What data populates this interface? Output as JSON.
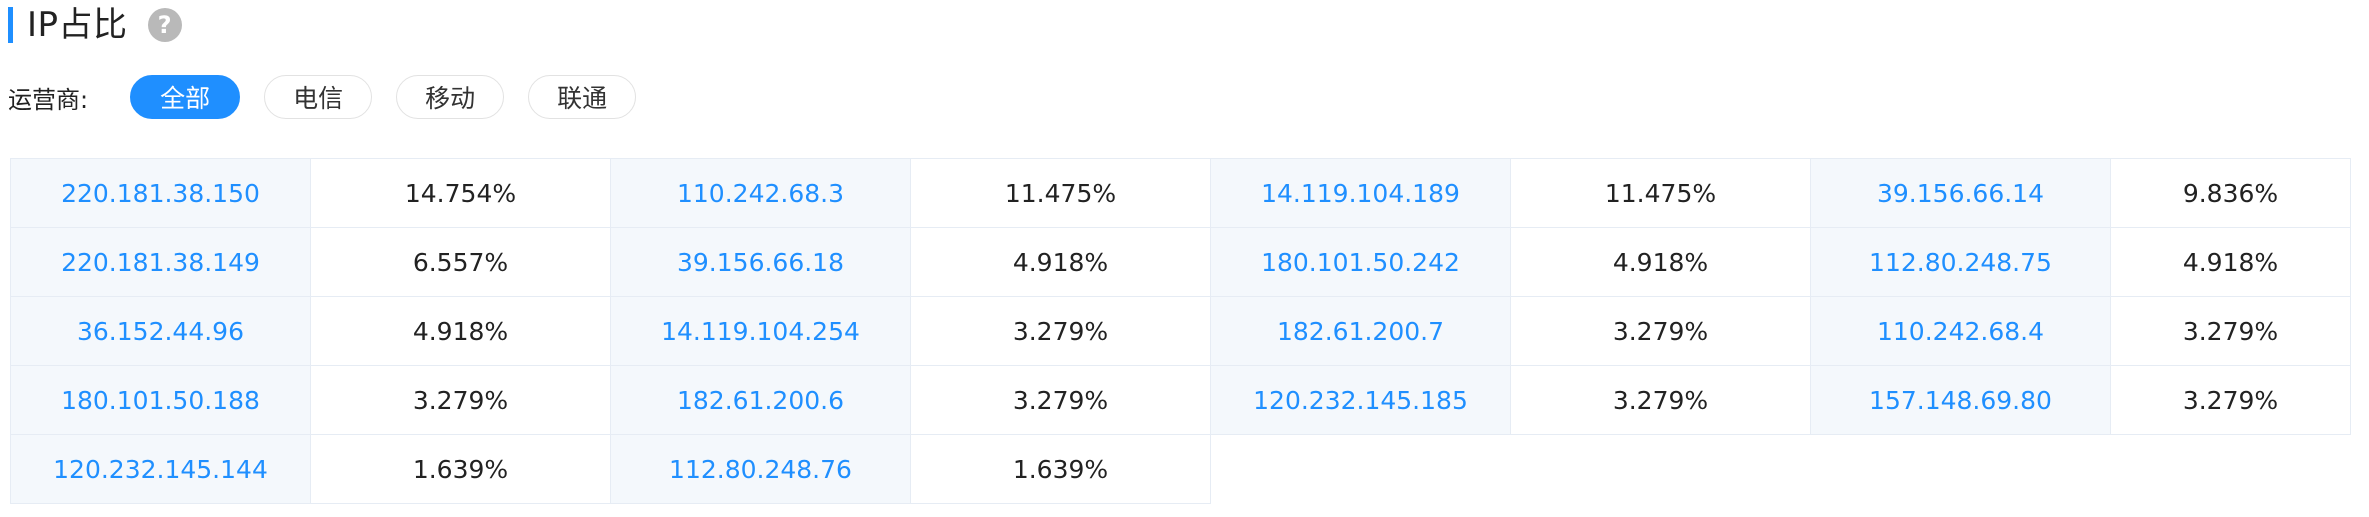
{
  "header": {
    "title": "IP占比",
    "help_icon": "question-circle-icon",
    "accent_color": "#1f8fff"
  },
  "filter": {
    "label": "运营商:",
    "options": [
      {
        "label": "全部",
        "active": true
      },
      {
        "label": "电信",
        "active": false
      },
      {
        "label": "移动",
        "active": false
      },
      {
        "label": "联通",
        "active": false
      }
    ]
  },
  "table": {
    "rows": [
      [
        {
          "ip": "220.181.38.150",
          "pct": "14.754%"
        },
        {
          "ip": "110.242.68.3",
          "pct": "11.475%"
        },
        {
          "ip": "14.119.104.189",
          "pct": "11.475%"
        },
        {
          "ip": "39.156.66.14",
          "pct": "9.836%"
        }
      ],
      [
        {
          "ip": "220.181.38.149",
          "pct": "6.557%"
        },
        {
          "ip": "39.156.66.18",
          "pct": "4.918%"
        },
        {
          "ip": "180.101.50.242",
          "pct": "4.918%"
        },
        {
          "ip": "112.80.248.75",
          "pct": "4.918%"
        }
      ],
      [
        {
          "ip": "36.152.44.96",
          "pct": "4.918%"
        },
        {
          "ip": "14.119.104.254",
          "pct": "3.279%"
        },
        {
          "ip": "182.61.200.7",
          "pct": "3.279%"
        },
        {
          "ip": "110.242.68.4",
          "pct": "3.279%"
        }
      ],
      [
        {
          "ip": "180.101.50.188",
          "pct": "3.279%"
        },
        {
          "ip": "182.61.200.6",
          "pct": "3.279%"
        },
        {
          "ip": "120.232.145.185",
          "pct": "3.279%"
        },
        {
          "ip": "157.148.69.80",
          "pct": "3.279%"
        }
      ],
      [
        {
          "ip": "120.232.145.144",
          "pct": "1.639%"
        },
        {
          "ip": "112.80.248.76",
          "pct": "1.639%"
        }
      ]
    ]
  }
}
